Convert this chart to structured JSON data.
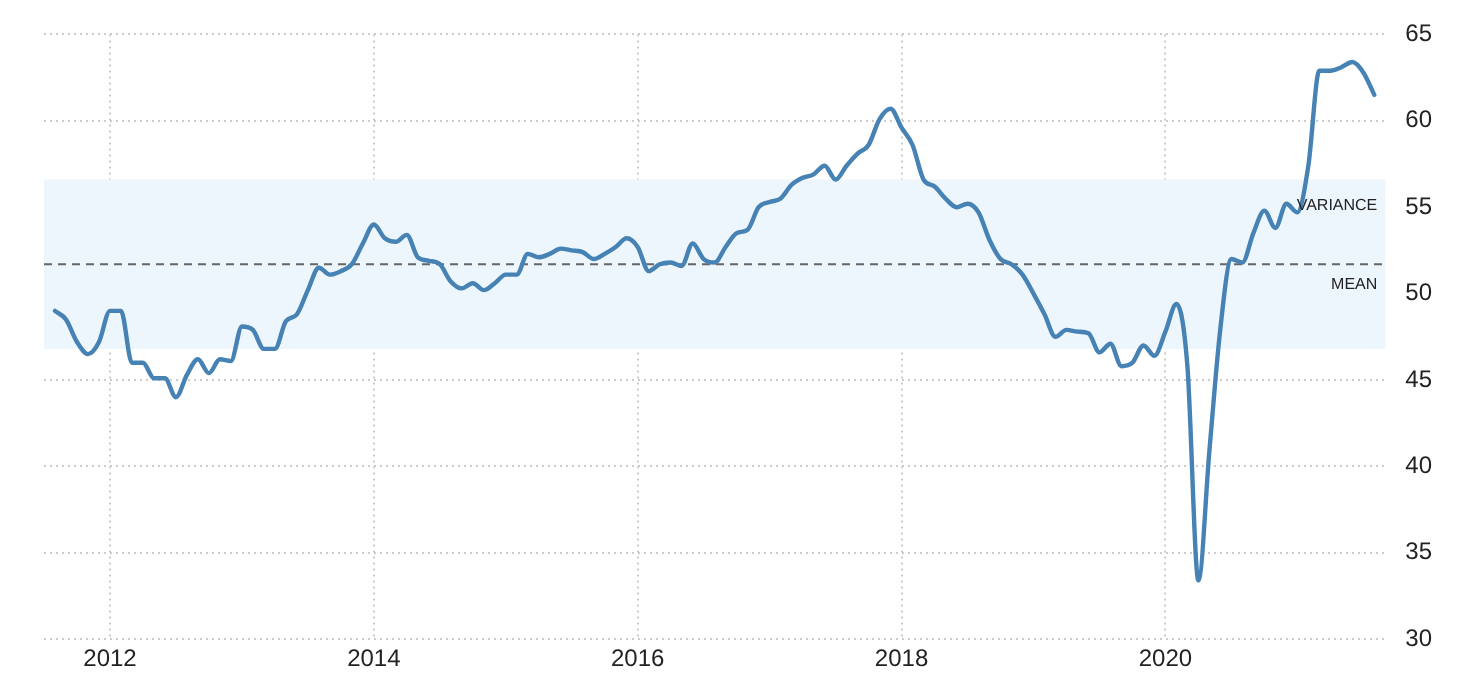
{
  "chart_data": {
    "type": "line",
    "x": [
      "2011-08",
      "2011-09",
      "2011-10",
      "2011-11",
      "2011-12",
      "2012-01",
      "2012-02",
      "2012-03",
      "2012-04",
      "2012-05",
      "2012-06",
      "2012-07",
      "2012-08",
      "2012-09",
      "2012-10",
      "2012-11",
      "2012-12",
      "2013-01",
      "2013-02",
      "2013-03",
      "2013-04",
      "2013-05",
      "2013-06",
      "2013-07",
      "2013-08",
      "2013-09",
      "2013-10",
      "2013-11",
      "2013-12",
      "2014-01",
      "2014-02",
      "2014-03",
      "2014-04",
      "2014-05",
      "2014-06",
      "2014-07",
      "2014-08",
      "2014-09",
      "2014-10",
      "2014-11",
      "2014-12",
      "2015-01",
      "2015-02",
      "2015-03",
      "2015-04",
      "2015-05",
      "2015-06",
      "2015-07",
      "2015-08",
      "2015-09",
      "2015-10",
      "2015-11",
      "2015-12",
      "2016-01",
      "2016-02",
      "2016-03",
      "2016-04",
      "2016-05",
      "2016-06",
      "2016-07",
      "2016-08",
      "2016-09",
      "2016-10",
      "2016-11",
      "2016-12",
      "2017-01",
      "2017-02",
      "2017-03",
      "2017-04",
      "2017-05",
      "2017-06",
      "2017-07",
      "2017-08",
      "2017-09",
      "2017-10",
      "2017-11",
      "2017-12",
      "2018-01",
      "2018-02",
      "2018-03",
      "2018-04",
      "2018-05",
      "2018-06",
      "2018-07",
      "2018-08",
      "2018-09",
      "2018-10",
      "2018-11",
      "2018-12",
      "2019-01",
      "2019-02",
      "2019-03",
      "2019-04",
      "2019-05",
      "2019-06",
      "2019-07",
      "2019-08",
      "2019-09",
      "2019-10",
      "2019-11",
      "2019-12",
      "2020-01",
      "2020-02",
      "2020-03",
      "2020-04",
      "2020-05",
      "2020-06",
      "2020-07",
      "2020-08",
      "2020-09",
      "2020-10",
      "2020-11",
      "2020-12",
      "2021-01",
      "2021-02",
      "2021-03",
      "2021-04",
      "2021-05",
      "2021-06",
      "2021-07",
      "2021-08"
    ],
    "series": [
      {
        "color": "#4682b4",
        "values": [
          49.0,
          48.5,
          47.2,
          46.5,
          47.2,
          49.0,
          49.0,
          46.0,
          46.0,
          45.1,
          45.1,
          44.0,
          45.3,
          46.2,
          45.4,
          46.2,
          46.1,
          48.1,
          47.9,
          46.8,
          46.8,
          48.4,
          48.8,
          50.2,
          51.5,
          51.1,
          51.3,
          51.7,
          52.9,
          54.0,
          53.2,
          53.0,
          53.4,
          52.1,
          51.9,
          51.7,
          50.7,
          50.3,
          50.6,
          50.2,
          50.6,
          51.1,
          51.1,
          52.3,
          52.1,
          52.3,
          52.6,
          52.5,
          52.4,
          52.0,
          52.3,
          52.7,
          53.2,
          52.7,
          51.3,
          51.7,
          51.8,
          51.6,
          52.9,
          52.0,
          51.8,
          52.7,
          53.5,
          53.7,
          55.0,
          55.3,
          55.5,
          56.3,
          56.7,
          56.9,
          57.4,
          56.6,
          57.4,
          58.1,
          58.6,
          60.1,
          60.7,
          59.6,
          58.6,
          56.6,
          56.2,
          55.5,
          55.0,
          55.2,
          54.7,
          53.1,
          52.0,
          51.7,
          51.1,
          50.0,
          48.8,
          47.5,
          47.9,
          47.8,
          47.7,
          46.6,
          47.1,
          45.8,
          46.0,
          47.0,
          46.4,
          47.8,
          49.4,
          45.8,
          33.4,
          40.9,
          48.0,
          52.0,
          51.8,
          53.5,
          54.8,
          53.8,
          55.2,
          54.7,
          57.4,
          62.9,
          62.9,
          63.1,
          63.4,
          62.8,
          61.5
        ]
      }
    ],
    "xlim": [
      "2011-07",
      "2021-09"
    ],
    "xticks": [
      {
        "value": "2012",
        "label": "2012"
      },
      {
        "value": "2014",
        "label": "2014"
      },
      {
        "value": "2016",
        "label": "2016"
      },
      {
        "value": "2018",
        "label": "2018"
      },
      {
        "value": "2020",
        "label": "2020"
      }
    ],
    "ylim": [
      30,
      65
    ],
    "yticks": [
      30,
      35,
      40,
      45,
      50,
      55,
      60,
      65
    ],
    "ref_lines": [
      {
        "axis": "y",
        "value": 51.7,
        "label": "MEAN",
        "color": "#666666",
        "line_style": "dashed"
      }
    ],
    "bands": [
      {
        "axis": "y",
        "from": 46.8,
        "to": 56.6,
        "label": "VARIANCE",
        "color": "#eef6fd"
      }
    ],
    "grid": true,
    "legend": false,
    "marker": "none",
    "line_style": "solid"
  }
}
